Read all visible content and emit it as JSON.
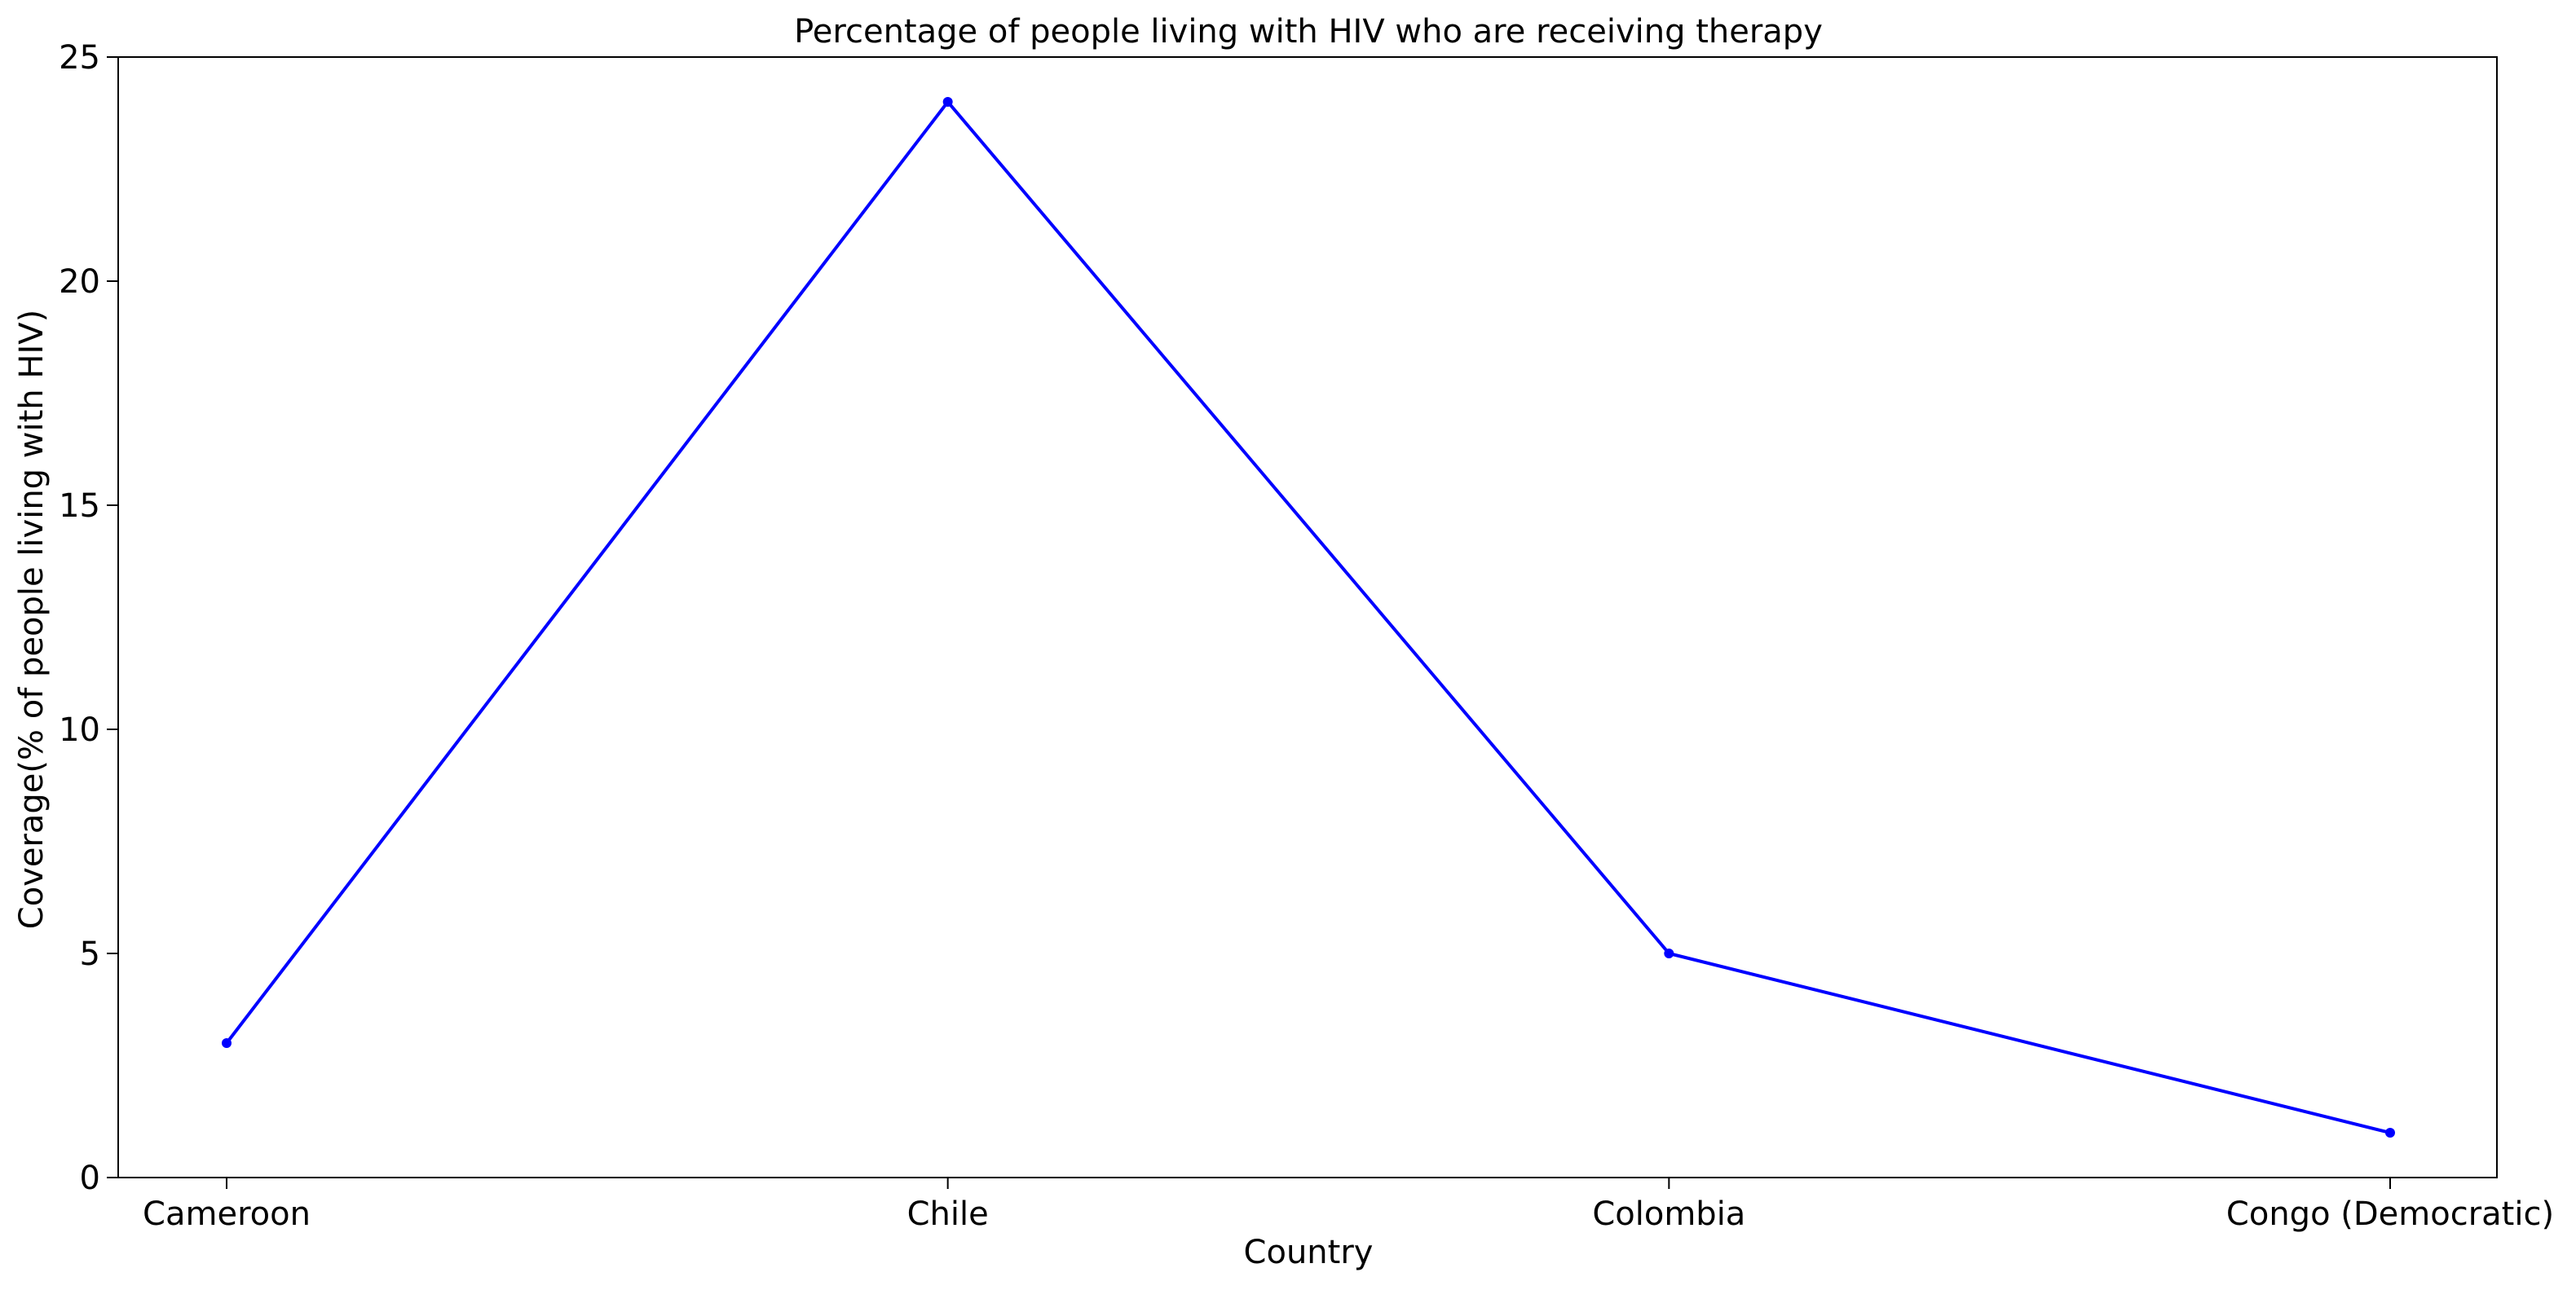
{
  "chart_data": {
    "type": "line",
    "title": "Percentage of people living with HIV who are receiving therapy",
    "xlabel": "Country",
    "ylabel": "Coverage(% of people living with HIV)",
    "categories": [
      "Cameroon",
      "Chile",
      "Colombia",
      "Congo (Democratic)"
    ],
    "series": [
      {
        "values": [
          3,
          24,
          5,
          1
        ],
        "color": "#0000ff",
        "marker": "circle"
      }
    ],
    "ylim": [
      0,
      25
    ],
    "yticks": [
      0,
      5,
      10,
      15,
      20,
      25
    ],
    "grid": false,
    "legend": "none"
  }
}
